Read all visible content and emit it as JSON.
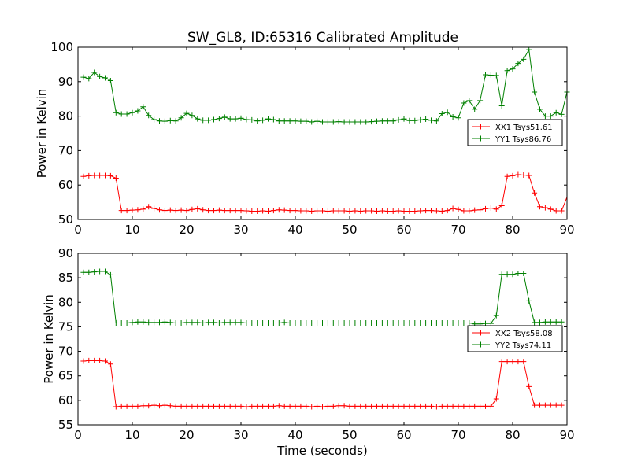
{
  "title": "SW_GL8, ID:65316 Calibrated Amplitude",
  "chart_data": [
    {
      "type": "line",
      "xlabel": "",
      "ylabel": "Power in Kelvin",
      "xlim": [
        0,
        90
      ],
      "ylim": [
        50,
        100
      ],
      "xticks": [
        0,
        10,
        20,
        30,
        40,
        50,
        60,
        70,
        80,
        90
      ],
      "yticks": [
        50,
        60,
        70,
        80,
        90,
        100
      ],
      "grid": false,
      "legend_position": "right",
      "x_start": 1,
      "x_step": 1,
      "series": [
        {
          "name": "XX1 Tsys51.61",
          "color": "#ff0000",
          "values": [
            62.5,
            62.7,
            62.8,
            62.8,
            62.8,
            62.7,
            62.0,
            52.6,
            52.6,
            52.7,
            52.8,
            53.0,
            53.7,
            53.2,
            52.8,
            52.6,
            52.7,
            52.6,
            52.7,
            52.6,
            52.9,
            53.1,
            52.8,
            52.6,
            52.6,
            52.7,
            52.6,
            52.6,
            52.6,
            52.6,
            52.5,
            52.4,
            52.4,
            52.5,
            52.4,
            52.6,
            52.8,
            52.7,
            52.6,
            52.6,
            52.5,
            52.5,
            52.4,
            52.5,
            52.5,
            52.4,
            52.5,
            52.5,
            52.5,
            52.4,
            52.5,
            52.4,
            52.5,
            52.5,
            52.4,
            52.5,
            52.4,
            52.4,
            52.5,
            52.4,
            52.4,
            52.4,
            52.5,
            52.6,
            52.6,
            52.5,
            52.4,
            52.6,
            53.2,
            52.9,
            52.5,
            52.5,
            52.7,
            52.8,
            53.1,
            53.3,
            53.0,
            54.0,
            62.5,
            62.7,
            63.0,
            62.9,
            62.8,
            57.7,
            53.7,
            53.4,
            53.0,
            52.5,
            52.5,
            56.5
          ]
        },
        {
          "name": "YY1 Tsys86.76",
          "color": "#008000",
          "values": [
            91.3,
            90.9,
            92.7,
            91.5,
            91.1,
            90.3,
            81.0,
            80.6,
            80.6,
            81.0,
            81.5,
            82.7,
            80.2,
            79.0,
            78.6,
            78.5,
            78.7,
            78.6,
            79.5,
            80.8,
            80.2,
            79.2,
            78.8,
            78.8,
            79.0,
            79.3,
            79.7,
            79.2,
            79.2,
            79.4,
            79.0,
            78.9,
            78.6,
            78.8,
            79.2,
            79.0,
            78.6,
            78.6,
            78.6,
            78.6,
            78.5,
            78.5,
            78.3,
            78.5,
            78.3,
            78.3,
            78.3,
            78.4,
            78.3,
            78.3,
            78.3,
            78.3,
            78.3,
            78.4,
            78.5,
            78.6,
            78.6,
            78.6,
            78.9,
            79.2,
            78.7,
            78.7,
            78.9,
            79.1,
            78.8,
            78.6,
            80.7,
            81.1,
            79.8,
            79.5,
            83.8,
            84.5,
            82.0,
            84.5,
            92.0,
            91.9,
            91.8,
            83.0,
            93.2,
            93.7,
            95.3,
            96.5,
            99.3,
            87.0,
            82.0,
            80.0,
            80.0,
            81.0,
            80.5,
            87.0
          ]
        }
      ]
    },
    {
      "type": "line",
      "xlabel": "Time (seconds)",
      "ylabel": "Power in Kelvin",
      "xlim": [
        0,
        90
      ],
      "ylim": [
        55,
        90
      ],
      "xticks": [
        0,
        10,
        20,
        30,
        40,
        50,
        60,
        70,
        80,
        90
      ],
      "yticks": [
        55,
        60,
        65,
        70,
        75,
        80,
        85,
        90
      ],
      "grid": false,
      "legend_position": "right",
      "x_start": 1,
      "x_step": 1,
      "series": [
        {
          "name": "XX2 Tsys58.08",
          "color": "#ff0000",
          "values": [
            68.0,
            68.1,
            68.1,
            68.1,
            68.0,
            67.4,
            58.7,
            58.8,
            58.8,
            58.8,
            58.8,
            58.9,
            58.9,
            59.0,
            58.9,
            59.0,
            58.9,
            58.8,
            58.8,
            58.8,
            58.8,
            58.8,
            58.8,
            58.8,
            58.8,
            58.8,
            58.8,
            58.8,
            58.8,
            58.8,
            58.7,
            58.8,
            58.8,
            58.8,
            58.8,
            58.8,
            58.9,
            58.8,
            58.8,
            58.8,
            58.8,
            58.8,
            58.7,
            58.8,
            58.7,
            58.8,
            58.8,
            58.9,
            58.9,
            58.8,
            58.8,
            58.8,
            58.8,
            58.8,
            58.8,
            58.8,
            58.8,
            58.8,
            58.8,
            58.8,
            58.8,
            58.8,
            58.8,
            58.8,
            58.8,
            58.7,
            58.8,
            58.8,
            58.8,
            58.8,
            58.8,
            58.8,
            58.8,
            58.8,
            58.8,
            58.8,
            60.3,
            67.9,
            67.9,
            67.9,
            67.9,
            67.9,
            62.8,
            59.0,
            59.0,
            59.0,
            59.0,
            59.0,
            59.0
          ]
        },
        {
          "name": "YY2 Tsys74.11",
          "color": "#008000",
          "values": [
            86.1,
            86.1,
            86.2,
            86.3,
            86.3,
            85.6,
            75.8,
            75.8,
            75.8,
            75.9,
            76.0,
            76.0,
            75.9,
            75.9,
            75.9,
            76.0,
            75.9,
            75.8,
            75.8,
            75.9,
            75.9,
            75.9,
            75.8,
            75.9,
            75.9,
            75.8,
            75.9,
            75.9,
            75.9,
            75.9,
            75.8,
            75.8,
            75.8,
            75.8,
            75.8,
            75.8,
            75.8,
            75.9,
            75.8,
            75.8,
            75.8,
            75.8,
            75.8,
            75.8,
            75.8,
            75.8,
            75.8,
            75.8,
            75.8,
            75.8,
            75.8,
            75.8,
            75.8,
            75.8,
            75.8,
            75.8,
            75.8,
            75.8,
            75.8,
            75.8,
            75.8,
            75.8,
            75.8,
            75.8,
            75.8,
            75.8,
            75.8,
            75.8,
            75.8,
            75.8,
            75.8,
            75.8,
            75.6,
            75.6,
            75.7,
            75.7,
            77.3,
            85.7,
            85.7,
            85.7,
            85.9,
            85.9,
            80.3,
            75.9,
            75.9,
            76.0,
            76.0,
            76.0,
            76.0
          ]
        }
      ]
    }
  ]
}
